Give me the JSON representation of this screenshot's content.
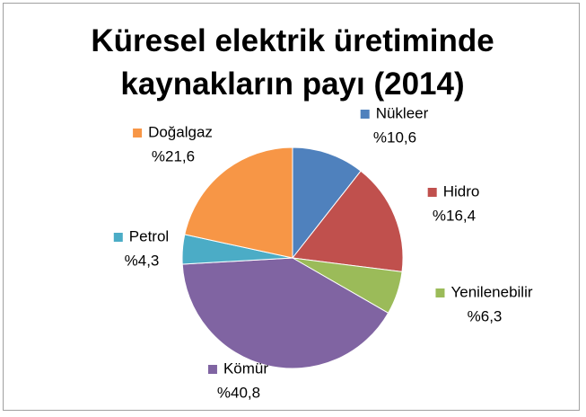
{
  "chart_data": {
    "type": "pie",
    "title": "Küresel elektrik üretiminde kaynakların payı (2014)",
    "categories": [
      "Nükleer",
      "Hidro",
      "Yenilenebilir",
      "Kömür",
      "Petrol",
      "Doğalgaz"
    ],
    "values": [
      10.6,
      16.4,
      6.3,
      40.8,
      4.3,
      21.6
    ],
    "value_labels": [
      "%10,6",
      "%16,4",
      "%6,3",
      "%40,8",
      "%4,3",
      "%21,6"
    ],
    "colors": [
      "#4f81bd",
      "#c0504d",
      "#9bbb59",
      "#8064a2",
      "#4bacc6",
      "#f79646"
    ]
  }
}
